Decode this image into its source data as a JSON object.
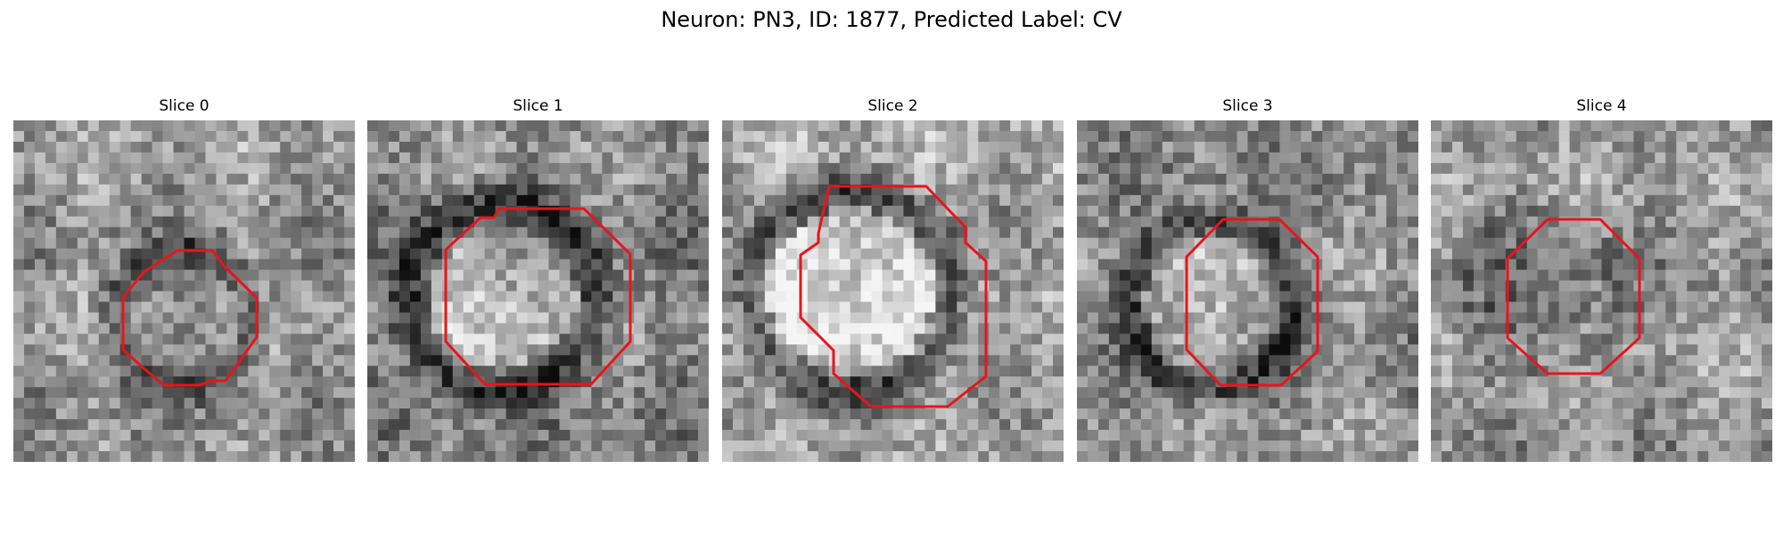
{
  "figure": {
    "title": "Neuron: PN3, ID: 1877, Predicted Label: CV"
  },
  "slices": [
    {
      "label": "Slice 0"
    },
    {
      "label": "Slice 1"
    },
    {
      "label": "Slice 2"
    },
    {
      "label": "Slice 3"
    },
    {
      "label": "Slice 4"
    }
  ],
  "colors": {
    "contour": "#e8151b",
    "background": "#ffffff"
  }
}
